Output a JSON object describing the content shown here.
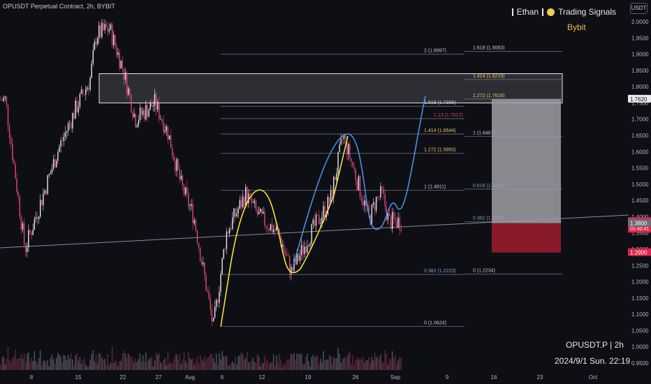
{
  "header": {
    "title": "OPUSDT Perpetual Contract, 2h, BYBIT"
  },
  "branding": {
    "author": "Ethan",
    "signals": "Trading Signals",
    "exchange": "Bybit",
    "currency": "USDT"
  },
  "footer": {
    "symbol": "OPUSDT.P | 2h",
    "datetime": "2024/9/1 Sun. 22:19"
  },
  "colors": {
    "background": "#0e0f15",
    "candle_up": "#e8e8ee",
    "candle_down": "#e0487a",
    "yellow_curve": "#f2e33a",
    "blue_curve": "#4a90e2",
    "box_gray": "#9e9ea4",
    "box_red": "#8a1a2a",
    "price_tag": "#e0244a",
    "fib_yellow": "#e8c46a",
    "fib_blue": "#7f9fd8"
  },
  "chart_data": {
    "type": "candlestick",
    "title": "OPUSDT Perpetual Contract, 2h, BYBIT",
    "xlabel": "",
    "ylabel": "",
    "ylim": [
      0.95,
      2.0
    ],
    "grid": false,
    "x_ticks": [
      "8",
      "15",
      "22",
      "27",
      "Aug",
      "6",
      "12",
      "19",
      "26",
      "Sep",
      "9",
      "16",
      "23",
      "Oct"
    ],
    "y_ticks": [
      "2.0000",
      "1.9500",
      "1.9000",
      "1.8500",
      "1.8000",
      "1.7500",
      "1.7000",
      "1.6500",
      "1.6000",
      "1.5500",
      "1.5000",
      "1.4500",
      "1.4000",
      "1.3500",
      "1.3000",
      "1.2500",
      "1.2000",
      "1.1500",
      "1.1000",
      "1.0500",
      "1.0000",
      "0.9500"
    ],
    "price_path": [
      {
        "x": "Jul 4",
        "y": 1.76
      },
      {
        "x": "Jul 7",
        "y": 1.3
      },
      {
        "x": "Jul 9",
        "y": 1.42
      },
      {
        "x": "Jul 12",
        "y": 1.6
      },
      {
        "x": "Jul 15",
        "y": 1.74
      },
      {
        "x": "Jul 17",
        "y": 1.82
      },
      {
        "x": "Jul 18",
        "y": 1.96
      },
      {
        "x": "Jul 20",
        "y": 1.98
      },
      {
        "x": "Jul 22",
        "y": 1.86
      },
      {
        "x": "Jul 24",
        "y": 1.7
      },
      {
        "x": "Jul 27",
        "y": 1.75
      },
      {
        "x": "Jul 29",
        "y": 1.66
      },
      {
        "x": "Jul 31",
        "y": 1.5
      },
      {
        "x": "Aug 2",
        "y": 1.4
      },
      {
        "x": "Aug 5",
        "y": 1.06
      },
      {
        "x": "Aug 7",
        "y": 1.35
      },
      {
        "x": "Aug 10",
        "y": 1.47
      },
      {
        "x": "Aug 12",
        "y": 1.4
      },
      {
        "x": "Aug 15",
        "y": 1.35
      },
      {
        "x": "Aug 17",
        "y": 1.23
      },
      {
        "x": "Aug 20",
        "y": 1.35
      },
      {
        "x": "Aug 23",
        "y": 1.45
      },
      {
        "x": "Aug 25",
        "y": 1.65
      },
      {
        "x": "Aug 27",
        "y": 1.52
      },
      {
        "x": "Aug 29",
        "y": 1.39
      },
      {
        "x": "Aug 30",
        "y": 1.45
      },
      {
        "x": "Aug 31",
        "y": 1.47
      },
      {
        "x": "Sep 1",
        "y": 1.3855
      }
    ],
    "volume_present": true,
    "fib_levels": [
      {
        "label": "2 (1.8997)",
        "price": 1.8997,
        "color": "#c8cad0"
      },
      {
        "label": "1.618 (1.9083)",
        "price": 1.9083,
        "color": "#c8cad0"
      },
      {
        "label": "1.414 (1.8219)",
        "price": 1.8219,
        "color": "#e8c46a"
      },
      {
        "label": "1.272 (1.7618)",
        "price": 1.7618,
        "color": "#e8c46a"
      },
      {
        "label": "1.618 (1.7398)",
        "price": 1.7398,
        "color": "#c8cad0"
      },
      {
        "label": "1.13 (1.7017)",
        "price": 1.7017,
        "color": "#e0445a"
      },
      {
        "label": "1 (1.6467)",
        "price": 1.6467,
        "color": "#c8cad0"
      },
      {
        "label": "1.414 (1.6544)",
        "price": 1.6544,
        "color": "#e8c46a"
      },
      {
        "label": "1.272 (1.5950)",
        "price": 1.595,
        "color": "#e8c46a"
      },
      {
        "label": "1 (1.4811)",
        "price": 1.4811,
        "color": "#c8cad0"
      },
      {
        "label": "0.618 (1.4850)",
        "price": 1.485,
        "color": "#7f9fd8"
      },
      {
        "label": "0.382 (1.3851)",
        "price": 1.3851,
        "color": "#7f9fd8"
      },
      {
        "label": "0.382 (1.2223)",
        "price": 1.2223,
        "color": "#7f9fd8"
      },
      {
        "label": "0 (1.2234)",
        "price": 1.2234,
        "color": "#c8cad0"
      },
      {
        "label": "0 (1.0624)",
        "price": 1.0624,
        "color": "#c8cad0"
      }
    ],
    "resistance_zone": [
      1.75,
      1.84
    ],
    "position": {
      "entry": 1.38,
      "target": 1.762,
      "stop": 1.29
    },
    "price_tags": [
      {
        "label": "1.7620",
        "price": 1.762,
        "style": "light"
      },
      {
        "label": "1.3855",
        "price": 1.3855,
        "style": "red",
        "sub": "01:40:41"
      },
      {
        "label": "1.3800",
        "price": 1.38,
        "style": "gray"
      },
      {
        "label": "1.2900",
        "price": 1.29,
        "style": "red"
      }
    ]
  }
}
